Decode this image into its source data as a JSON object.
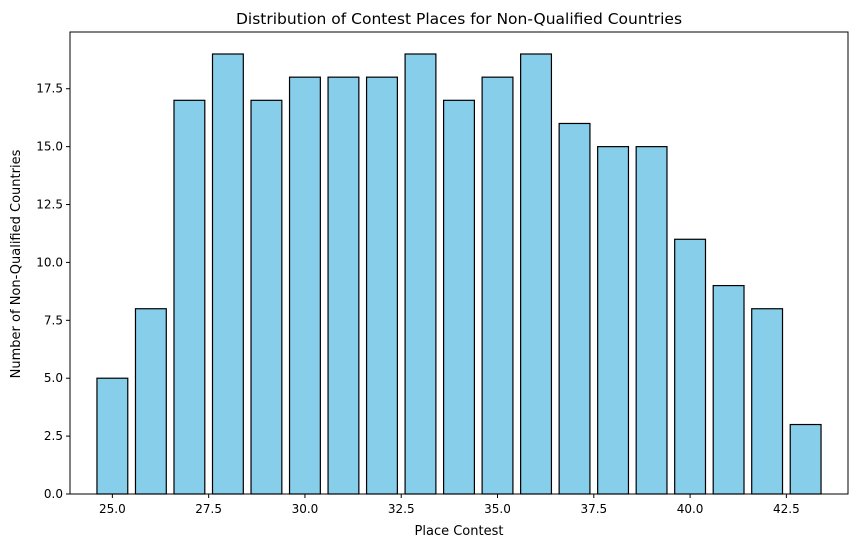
{
  "chart_data": {
    "type": "bar",
    "title": "Distribution of Contest Places for Non-Qualified Countries",
    "xlabel": "Place Contest",
    "ylabel": "Number of Non-Qualified Countries",
    "x": [
      25,
      26,
      27,
      28,
      29,
      30,
      31,
      32,
      33,
      34,
      35,
      36,
      37,
      38,
      39,
      40,
      41,
      42,
      43
    ],
    "values": [
      5,
      8,
      17,
      19,
      17,
      18,
      18,
      18,
      19,
      17,
      18,
      19,
      16,
      15,
      15,
      11,
      9,
      8,
      3
    ],
    "xlim": [
      23.9,
      44.1
    ],
    "ylim": [
      0,
      19.95
    ],
    "xticks": [
      25.0,
      27.5,
      30.0,
      32.5,
      35.0,
      37.5,
      40.0,
      42.5
    ],
    "xtick_labels": [
      "25.0",
      "27.5",
      "30.0",
      "32.5",
      "35.0",
      "37.5",
      "40.0",
      "42.5"
    ],
    "yticks": [
      0,
      2.5,
      5,
      7.5,
      10,
      12.5,
      15,
      17.5
    ],
    "ytick_labels": [
      "0.0",
      "2.5",
      "5.0",
      "7.5",
      "10.0",
      "12.5",
      "15.0",
      "17.5"
    ],
    "bar_color": "#87CEEB",
    "edge_color": "#000000",
    "grid": false,
    "legend": false
  }
}
